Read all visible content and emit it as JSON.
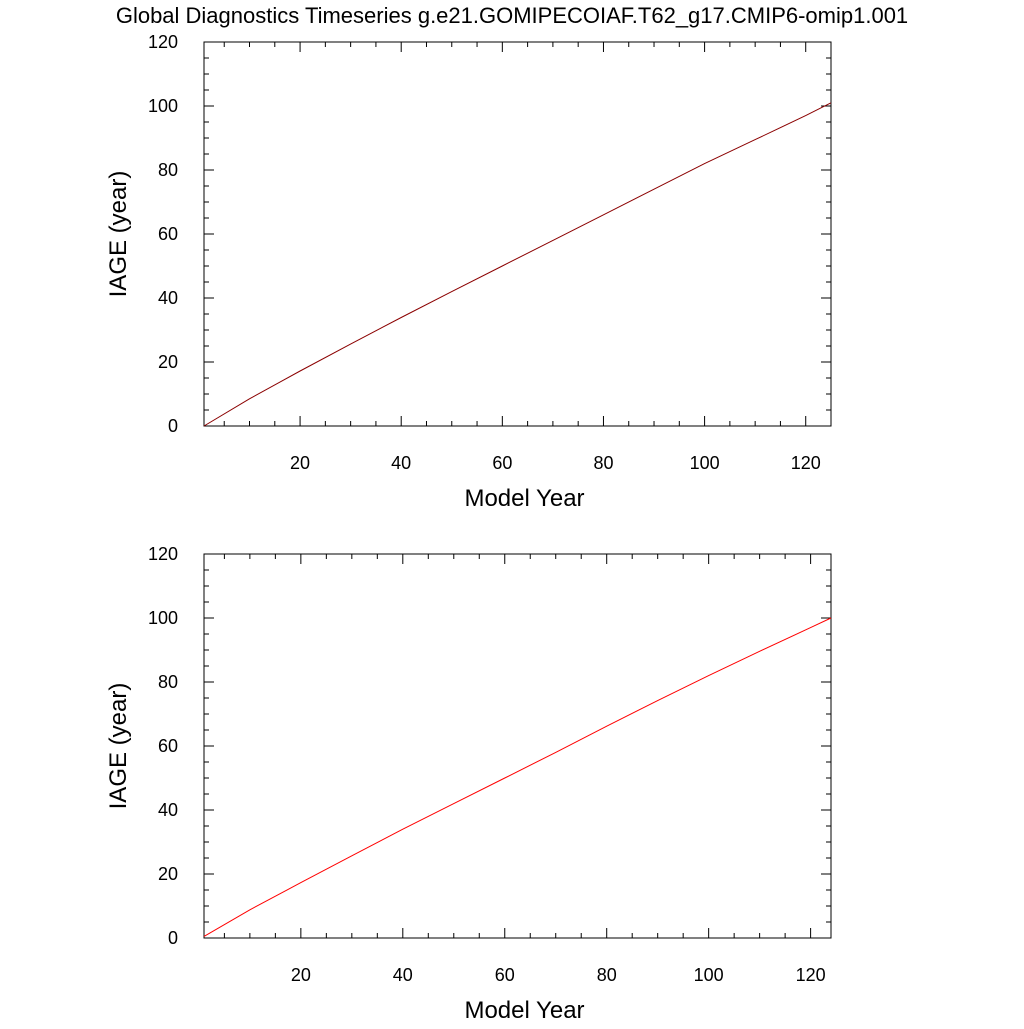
{
  "page": {
    "title": "Global Diagnostics Timeseries g.e21.GOMIPECOIAF.T62_g17.CMIP6-omip1.001"
  },
  "chart_data": [
    {
      "type": "line",
      "title": "",
      "xlabel": "Model Year",
      "ylabel": "IAGE (year)",
      "xlim": [
        1,
        125
      ],
      "ylim": [
        0,
        120
      ],
      "xticks": [
        20,
        40,
        60,
        80,
        100,
        120
      ],
      "xtick_labels": [
        "20",
        "40",
        "60",
        "80",
        "100",
        "120"
      ],
      "yticks": [
        0,
        20,
        40,
        60,
        80,
        100,
        120
      ],
      "ytick_labels": [
        "0",
        "20",
        "40",
        "60",
        "80",
        "100",
        "120"
      ],
      "grid": false,
      "legend": "none",
      "series": [
        {
          "color": "#8b0000",
          "x": [
            1,
            10,
            20,
            30,
            40,
            50,
            60,
            70,
            80,
            90,
            100,
            110,
            120,
            125
          ],
          "y": [
            0,
            8.5,
            17.2,
            25.6,
            33.9,
            42.0,
            50.0,
            58.0,
            66.0,
            74.0,
            82.0,
            89.5,
            97.0,
            101.0
          ]
        }
      ]
    },
    {
      "type": "line",
      "title": "",
      "xlabel": "Model Year",
      "ylabel": "IAGE (year)",
      "xlim": [
        1,
        124
      ],
      "ylim": [
        0,
        120
      ],
      "xticks": [
        20,
        40,
        60,
        80,
        100,
        120
      ],
      "xtick_labels": [
        "20",
        "40",
        "60",
        "80",
        "100",
        "120"
      ],
      "yticks": [
        0,
        20,
        40,
        60,
        80,
        100,
        120
      ],
      "ytick_labels": [
        "0",
        "20",
        "40",
        "60",
        "80",
        "100",
        "120"
      ],
      "grid": false,
      "legend": "none",
      "series": [
        {
          "color": "#ff0000",
          "x": [
            1,
            10,
            20,
            30,
            40,
            50,
            60,
            70,
            80,
            90,
            100,
            110,
            120,
            124
          ],
          "y": [
            0.5,
            8.8,
            17.3,
            25.7,
            34.0,
            42.0,
            50.0,
            58.0,
            66.2,
            74.2,
            82.0,
            89.6,
            97.0,
            100.0
          ]
        }
      ]
    }
  ]
}
